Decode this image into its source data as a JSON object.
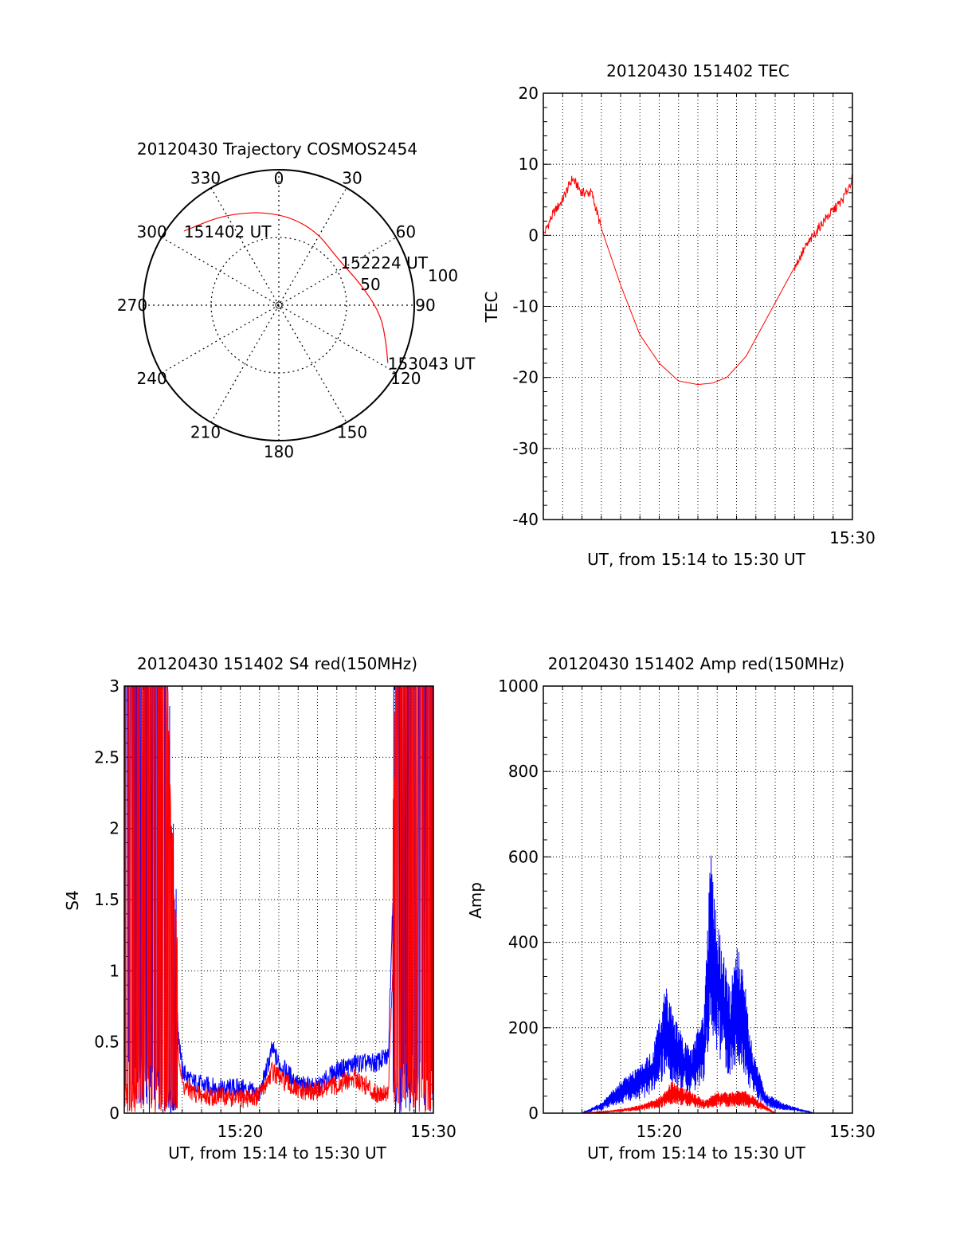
{
  "colors": {
    "red": "#ff0000",
    "blue": "#0000ff",
    "axis": "#000000",
    "grid": "#000000"
  },
  "chart_data": [
    {
      "type": "polar",
      "title": "20120430 Trajectory COSMOS2454",
      "azimuth_labels": [
        "0",
        "30",
        "60",
        "90",
        "120",
        "150",
        "180",
        "210",
        "240",
        "270",
        "300",
        "330"
      ],
      "radius_labels": [
        "50",
        "100"
      ],
      "grid": true,
      "trajectory": {
        "points": [
          {
            "az": 308,
            "el": 10,
            "label": "151402 UT"
          },
          {
            "az": 330,
            "el": 20
          },
          {
            "az": 358,
            "el": 28
          },
          {
            "az": 25,
            "el": 34
          },
          {
            "az": 55,
            "el": 40,
            "label": "152224 UT"
          },
          {
            "az": 75,
            "el": 34
          },
          {
            "az": 95,
            "el": 22
          },
          {
            "az": 110,
            "el": 14
          },
          {
            "az": 118,
            "el": 8,
            "label": "153043 UT"
          }
        ]
      }
    },
    {
      "type": "line",
      "title": "20120430 151402 TEC",
      "xlabel": "UT, from 15:14 to 15:30 UT",
      "ylabel": "TEC",
      "xlim": [
        "15:14",
        "15:30"
      ],
      "ylim": [
        -40,
        20
      ],
      "yticks": [
        "20",
        "10",
        "0",
        "-10",
        "-20",
        "-30",
        "-40"
      ],
      "xticks": [
        "15:30"
      ],
      "grid": true,
      "series": [
        {
          "color": "red",
          "x": [
            "15:14:00",
            "15:14:30",
            "15:15:00",
            "15:15:30",
            "15:16:00",
            "15:16:30",
            "15:17:00",
            "15:18:00",
            "15:19:00",
            "15:20:00",
            "15:21:00",
            "15:22:00",
            "15:22:45",
            "15:23:30",
            "15:24:30",
            "15:25:30",
            "15:26:30",
            "15:27:30",
            "15:28:30",
            "15:29:30",
            "15:30:00"
          ],
          "values": [
            0,
            3,
            5,
            8,
            6,
            6,
            1,
            -7,
            -14,
            -18,
            -20.5,
            -21,
            -20.8,
            -20,
            -17,
            -12,
            -7,
            -2,
            2,
            5,
            8
          ]
        }
      ]
    },
    {
      "type": "line",
      "title": "20120430 151402 S4 red(150MHz)",
      "xlabel": "UT, from 15:14 to 15:30 UT",
      "ylabel": "S4",
      "xlim": [
        "15:14",
        "15:30"
      ],
      "ylim": [
        0,
        3
      ],
      "yticks": [
        "3",
        "2.5",
        "2",
        "1.5",
        "1",
        "0.5",
        "0"
      ],
      "xticks": [
        "15:20",
        "15:30"
      ],
      "grid": true,
      "series": [
        {
          "color": "blue",
          "x": [
            "15:14:10",
            "15:15:00",
            "15:16:00",
            "15:16:30",
            "15:17:00",
            "15:17:30",
            "15:18:00",
            "15:19:00",
            "15:20:00",
            "15:21:00",
            "15:21:40",
            "15:22:00",
            "15:23:00",
            "15:24:00",
            "15:25:00",
            "15:26:00",
            "15:27:00",
            "15:27:40",
            "15:28:00",
            "15:28:30",
            "15:29:00",
            "15:29:50"
          ],
          "values": [
            3,
            2.8,
            2.2,
            1.0,
            0.3,
            0.22,
            0.2,
            0.17,
            0.18,
            0.13,
            0.45,
            0.35,
            0.2,
            0.18,
            0.3,
            0.35,
            0.35,
            0.4,
            2.0,
            3,
            3,
            2.6
          ]
        },
        {
          "color": "red",
          "x": [
            "15:14:10",
            "15:15:00",
            "15:16:00",
            "15:16:30",
            "15:17:00",
            "15:17:30",
            "15:18:00",
            "15:19:00",
            "15:20:00",
            "15:21:00",
            "15:21:40",
            "15:22:00",
            "15:23:00",
            "15:24:00",
            "15:25:00",
            "15:26:00",
            "15:27:00",
            "15:27:40",
            "15:28:00",
            "15:28:30",
            "15:29:00",
            "15:29:50"
          ],
          "values": [
            1.5,
            2.5,
            2.0,
            0.9,
            0.2,
            0.15,
            0.12,
            0.12,
            0.1,
            0.12,
            0.3,
            0.25,
            0.15,
            0.15,
            0.2,
            0.25,
            0.14,
            0.15,
            1.4,
            2.8,
            2.2,
            1.8
          ]
        }
      ]
    },
    {
      "type": "area",
      "title": "20120430 151402 Amp red(150MHz)",
      "xlabel": "UT, from 15:14 to 15:30 UT",
      "ylabel": "Amp",
      "xlim": [
        "15:14",
        "15:30"
      ],
      "ylim": [
        0,
        1000
      ],
      "yticks": [
        "1000",
        "800",
        "600",
        "400",
        "200",
        "0"
      ],
      "xticks": [
        "15:20",
        "15:30"
      ],
      "grid": true,
      "series": [
        {
          "color": "blue",
          "x": [
            "15:14:00",
            "15:16:00",
            "15:17:00",
            "15:18:00",
            "15:19:00",
            "15:19:40",
            "15:20:20",
            "15:21:00",
            "15:21:40",
            "15:22:20",
            "15:22:40",
            "15:23:10",
            "15:23:40",
            "15:24:00",
            "15:24:20",
            "15:24:50",
            "15:25:30",
            "15:26:20",
            "15:27:10",
            "15:28:00",
            "15:30:00"
          ],
          "values": [
            0,
            0,
            20,
            60,
            90,
            120,
            240,
            160,
            120,
            200,
            500,
            330,
            230,
            320,
            280,
            120,
            40,
            20,
            10,
            0,
            0
          ]
        },
        {
          "color": "red",
          "x": [
            "15:14:00",
            "15:16:00",
            "15:17:00",
            "15:18:00",
            "15:19:00",
            "15:20:00",
            "15:20:40",
            "15:21:40",
            "15:22:20",
            "15:23:00",
            "15:23:40",
            "15:24:20",
            "15:25:00",
            "15:25:40",
            "15:26:00",
            "15:30:00"
          ],
          "values": [
            0,
            0,
            3,
            8,
            15,
            30,
            60,
            40,
            25,
            40,
            40,
            45,
            30,
            10,
            0,
            0
          ]
        }
      ]
    }
  ]
}
